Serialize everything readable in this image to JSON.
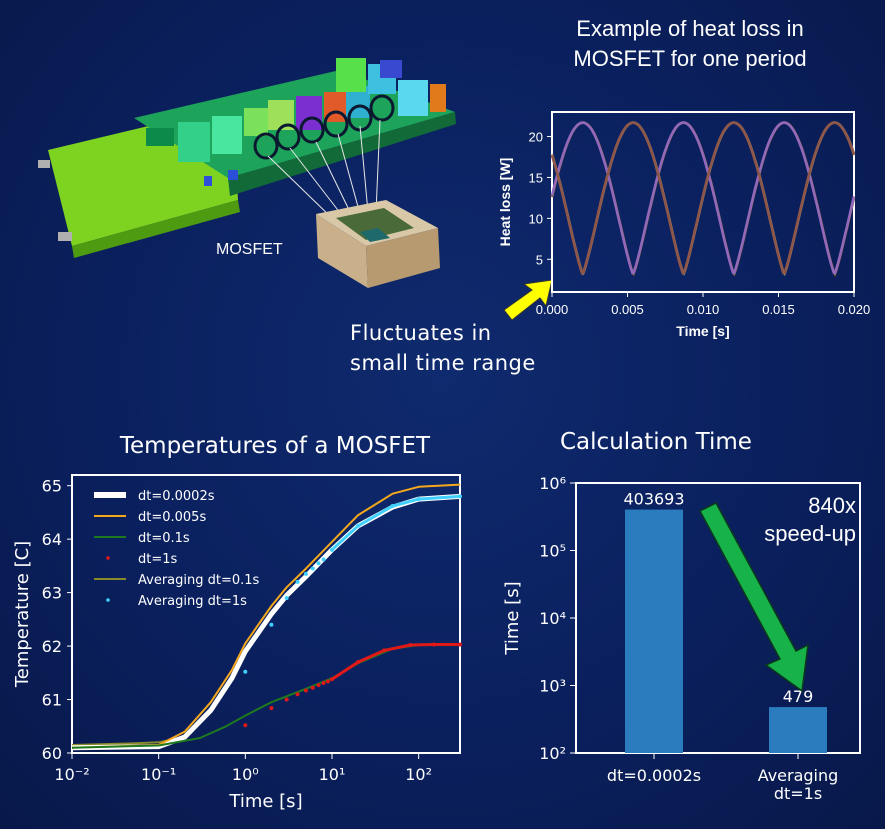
{
  "labels": {
    "heat_loss_title_line1": "Example of heat loss in",
    "heat_loss_title_line2": "MOSFET for one period",
    "fluctuates_line1": "Fluctuates in",
    "fluctuates_line2": "small time range",
    "mosfet": "MOSFET",
    "temp_title": "Temperatures of a MOSFET",
    "calc_title": "Calculation Time",
    "speedup_line1": "840x",
    "speedup_line2": "speed-up"
  },
  "colors": {
    "background": "#0a1f5c",
    "highlight_arrow": "#ffff00",
    "speedup_arrow": "#17b34a",
    "bar": "#2b7bbf"
  },
  "chart_data": [
    {
      "type": "line",
      "title": "",
      "xlabel": "Time [s]",
      "ylabel": "Heat loss [W]",
      "xlim": [
        0,
        0.02
      ],
      "ylim": [
        1,
        23
      ],
      "xticks": [
        "0.000",
        "0.005",
        "0.010",
        "0.015",
        "0.020"
      ],
      "yticks": [
        "5",
        "10",
        "15",
        "20"
      ],
      "period": 0.00667,
      "series": [
        {
          "color": "#d62728",
          "phase": 0.00205
        },
        {
          "color": "#1f77b4",
          "phase": 0.00538
        },
        {
          "color": "#2ca02c",
          "phase": 0.00871
        },
        {
          "color": "#ff7f0e",
          "phase": 0.01204
        },
        {
          "color": "#9467bd",
          "phase": 0.01537
        },
        {
          "color": "#8c564b",
          "phase": 0.0187
        }
      ],
      "peak": 21.7,
      "floor": 3.2
    },
    {
      "type": "line",
      "title": "Temperatures of a MOSFET",
      "xlabel": "Time [s]",
      "ylabel": "Temperature [C]",
      "xscale": "log",
      "xlim": [
        0.01,
        300
      ],
      "ylim": [
        60,
        65.2
      ],
      "xticks": [
        "10⁻²",
        "10⁻¹",
        "10⁰",
        "10¹",
        "10²"
      ],
      "yticks": [
        "60",
        "61",
        "62",
        "63",
        "64",
        "65"
      ],
      "legend_position": "top-left",
      "series": [
        {
          "name": "dt=0.0002s",
          "color": "#ffffff",
          "style": "thick",
          "points": [
            [
              0.01,
              60.1
            ],
            [
              0.1,
              60.12
            ],
            [
              0.2,
              60.3
            ],
            [
              0.4,
              60.8
            ],
            [
              0.7,
              61.4
            ],
            [
              1,
              61.9
            ],
            [
              2,
              62.6
            ],
            [
              3,
              62.95
            ],
            [
              5,
              63.3
            ],
            [
              10,
              63.8
            ],
            [
              20,
              64.25
            ],
            [
              50,
              64.6
            ],
            [
              100,
              64.75
            ],
            [
              300,
              64.8
            ]
          ]
        },
        {
          "name": "dt=0.005s",
          "color": "#f5a81c",
          "style": "line",
          "points": [
            [
              0.01,
              60.1
            ],
            [
              0.1,
              60.15
            ],
            [
              0.2,
              60.4
            ],
            [
              0.4,
              60.95
            ],
            [
              0.7,
              61.55
            ],
            [
              1,
              62.05
            ],
            [
              2,
              62.75
            ],
            [
              3,
              63.1
            ],
            [
              5,
              63.45
            ],
            [
              10,
              63.95
            ],
            [
              20,
              64.45
            ],
            [
              50,
              64.85
            ],
            [
              100,
              64.98
            ],
            [
              300,
              65.02
            ]
          ]
        },
        {
          "name": "dt=0.1s",
          "color": "#1e7a1e",
          "style": "line",
          "points": [
            [
              0.01,
              60.1
            ],
            [
              0.1,
              60.14
            ],
            [
              0.3,
              60.28
            ],
            [
              0.6,
              60.5
            ],
            [
              1,
              60.7
            ],
            [
              2,
              60.95
            ],
            [
              5,
              61.2
            ],
            [
              10,
              61.4
            ],
            [
              20,
              61.68
            ],
            [
              50,
              61.95
            ],
            [
              100,
              62.02
            ],
            [
              300,
              62.03
            ]
          ]
        },
        {
          "name": "dt=1s",
          "color": "#e01818",
          "style": "dots",
          "points": [
            [
              1,
              60.52
            ],
            [
              2,
              60.84
            ],
            [
              3,
              61.0
            ],
            [
              4,
              61.1
            ],
            [
              5,
              61.17
            ],
            [
              6,
              61.22
            ],
            [
              7,
              61.27
            ],
            [
              8,
              61.31
            ],
            [
              9,
              61.34
            ],
            [
              10,
              61.38
            ],
            [
              20,
              61.7
            ],
            [
              40,
              61.92
            ],
            [
              80,
              62.02
            ],
            [
              150,
              62.03
            ],
            [
              300,
              62.03
            ]
          ]
        },
        {
          "name": "Averaging dt=0.1s",
          "color": "#8a8a2a",
          "style": "line",
          "points": [
            [
              0.01,
              60.15
            ],
            [
              0.05,
              60.18
            ],
            [
              0.1,
              60.2
            ],
            [
              0.2,
              60.3
            ],
            [
              0.4,
              60.8
            ],
            [
              0.7,
              61.4
            ],
            [
              1,
              61.9
            ],
            [
              2,
              62.6
            ],
            [
              3,
              62.95
            ],
            [
              5,
              63.3
            ],
            [
              10,
              63.8
            ],
            [
              20,
              64.25
            ],
            [
              50,
              64.6
            ],
            [
              100,
              64.75
            ],
            [
              300,
              64.8
            ]
          ]
        },
        {
          "name": "Averaging dt=1s",
          "color": "#3fd0ff",
          "style": "dots",
          "points": [
            [
              1,
              61.52
            ],
            [
              2,
              62.4
            ],
            [
              3,
              62.9
            ],
            [
              4,
              63.2
            ],
            [
              5,
              63.35
            ],
            [
              6,
              63.45
            ],
            [
              7,
              63.55
            ],
            [
              8,
              63.62
            ],
            [
              10,
              63.8
            ],
            [
              20,
              64.25
            ],
            [
              50,
              64.62
            ],
            [
              100,
              64.75
            ],
            [
              300,
              64.8
            ]
          ]
        }
      ]
    },
    {
      "type": "bar",
      "title": "Calculation Time",
      "ylabel": "Time [s]",
      "yscale": "log",
      "ylim": [
        100,
        1000000
      ],
      "yticks": [
        "10²",
        "10³",
        "10⁴",
        "10⁵",
        "10⁶"
      ],
      "categories": [
        "dt=0.0002s",
        "Averaging\ndt=1s"
      ],
      "values": [
        403693,
        479
      ],
      "value_labels": [
        "403693",
        "479"
      ]
    }
  ]
}
